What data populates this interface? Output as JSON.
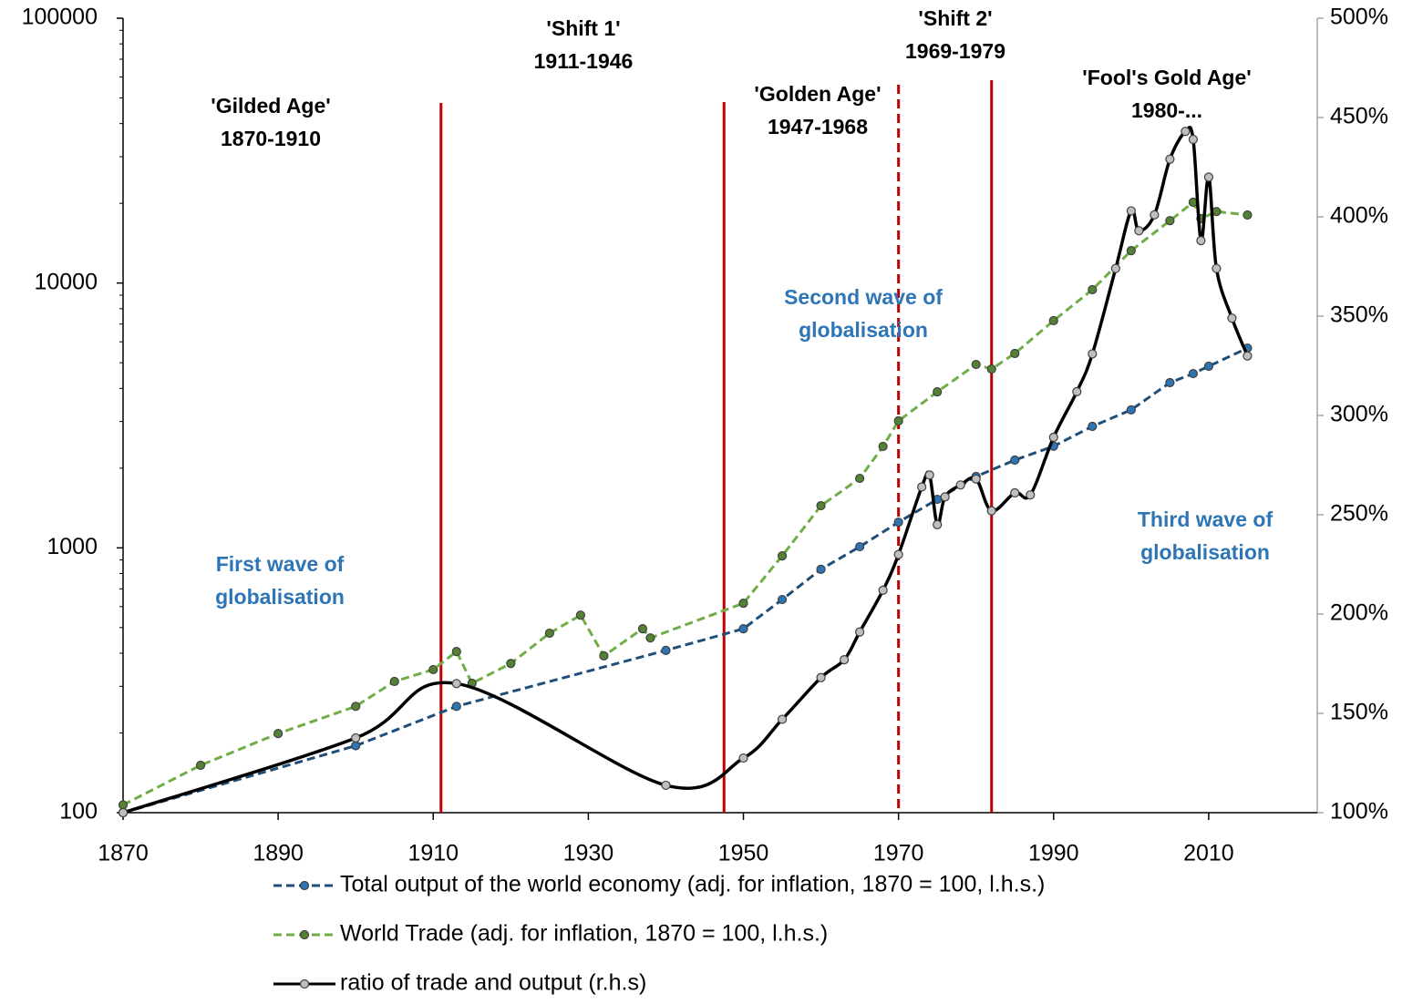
{
  "chart_data": {
    "type": "line",
    "xlim": [
      1870,
      2024
    ],
    "xticks": [
      1870,
      1890,
      1910,
      1930,
      1950,
      1970,
      1990,
      2010
    ],
    "ylim": [
      100,
      100000
    ],
    "yticks": [
      100,
      1000,
      10000,
      100000
    ],
    "y_log": true,
    "y2lim": [
      100,
      500
    ],
    "y2ticks": [
      {
        "value": 100,
        "label": "100%"
      },
      {
        "value": 150,
        "label": "150%"
      },
      {
        "value": 200,
        "label": "200%"
      },
      {
        "value": 250,
        "label": "250%"
      },
      {
        "value": 300,
        "label": "300%"
      },
      {
        "value": 350,
        "label": "350%"
      },
      {
        "value": 400,
        "label": "400%"
      },
      {
        "value": 450,
        "label": "450%"
      },
      {
        "value": 500,
        "label": "500%"
      }
    ],
    "series": [
      {
        "name": "Total output of the world economy (adj. for inflation, 1870 = 100, l.h.s.)",
        "color": "#2e75b6",
        "line_color": "#1f4e79",
        "dashed": true,
        "x": [
          1870,
          1900,
          1913,
          1940,
          1950,
          1955,
          1960,
          1965,
          1970,
          1975,
          1980,
          1985,
          1990,
          1995,
          2000,
          2005,
          2008,
          2010,
          2015
        ],
        "values": [
          100,
          179,
          252,
          410,
          495,
          638,
          830,
          1010,
          1250,
          1525,
          1860,
          2145,
          2420,
          2875,
          3320,
          4205,
          4550,
          4850,
          5680
        ]
      },
      {
        "name": "World Trade (adj. for inflation, 1870 = 100, l.h.s.)",
        "color": "#548235",
        "line_color": "#70ad47",
        "dashed": true,
        "x": [
          1870,
          1880,
          1890,
          1900,
          1905,
          1910,
          1913,
          1915,
          1920,
          1925,
          1929,
          1932,
          1937,
          1938,
          1950,
          1955,
          1960,
          1965,
          1968,
          1970,
          1975,
          1980,
          1982,
          1985,
          1990,
          1995,
          2000,
          2005,
          2008,
          2009,
          2011,
          2015
        ],
        "values": [
          107,
          151,
          199,
          252,
          313,
          347,
          406,
          308,
          366,
          476,
          557,
          391,
          495,
          457,
          618,
          933,
          1443,
          1830,
          2415,
          3015,
          3883,
          4925,
          4735,
          5420,
          7210,
          9440,
          13250,
          17200,
          20180,
          17500,
          18620,
          18070
        ]
      },
      {
        "name": "ratio of trade and output (r.h.s)",
        "color": "#bfbfbf",
        "line_color": "#000000",
        "dashed": false,
        "axis": "y2",
        "smooth": true,
        "x": [
          1870,
          1900,
          1913,
          1940,
          1950,
          1955,
          1960,
          1963,
          1965,
          1968,
          1970,
          1973,
          1974,
          1975,
          1976,
          1978,
          1980,
          1982,
          1985,
          1987,
          1990,
          1993,
          1995,
          1998,
          2000,
          2001,
          2003,
          2005,
          2007,
          2008,
          2009,
          2010,
          2011,
          2013,
          2015
        ],
        "values": [
          100,
          137.6,
          165,
          113.8,
          127.5,
          147,
          168,
          177,
          191,
          212,
          230,
          264,
          270,
          245,
          259,
          265,
          268,
          252,
          261,
          260,
          289,
          312,
          331,
          374,
          403,
          393,
          401,
          429,
          443,
          439,
          388,
          420,
          374,
          349,
          330
        ]
      }
    ],
    "vlines": [
      {
        "x": 1911,
        "color": "#c00000",
        "dashed": false
      },
      {
        "x": 1947.5,
        "color": "#c00000",
        "dashed": false
      },
      {
        "x": 1970,
        "color": "#c00000",
        "dashed": true
      },
      {
        "x": 1982,
        "color": "#c00000",
        "dashed": false
      }
    ],
    "annotations": [
      {
        "lines": [
          "'Gilded Age'",
          "1870-1910"
        ],
        "color": "#000000"
      },
      {
        "lines": [
          "'Shift 1'",
          "1911-1946"
        ],
        "color": "#000000"
      },
      {
        "lines": [
          "'Golden Age'",
          "1947-1968"
        ],
        "color": "#000000"
      },
      {
        "lines": [
          "'Shift 2'",
          "1969-1979"
        ],
        "color": "#000000"
      },
      {
        "lines": [
          "'Fool's Gold Age'",
          "1980-..."
        ],
        "color": "#000000"
      },
      {
        "lines": [
          "Second wave of",
          "globalisation"
        ],
        "color": "#2e75b6"
      },
      {
        "lines": [
          "First wave of",
          "globalisation"
        ],
        "color": "#2e75b6"
      },
      {
        "lines": [
          "Third wave of",
          "globalisation"
        ],
        "color": "#2e75b6"
      }
    ]
  }
}
